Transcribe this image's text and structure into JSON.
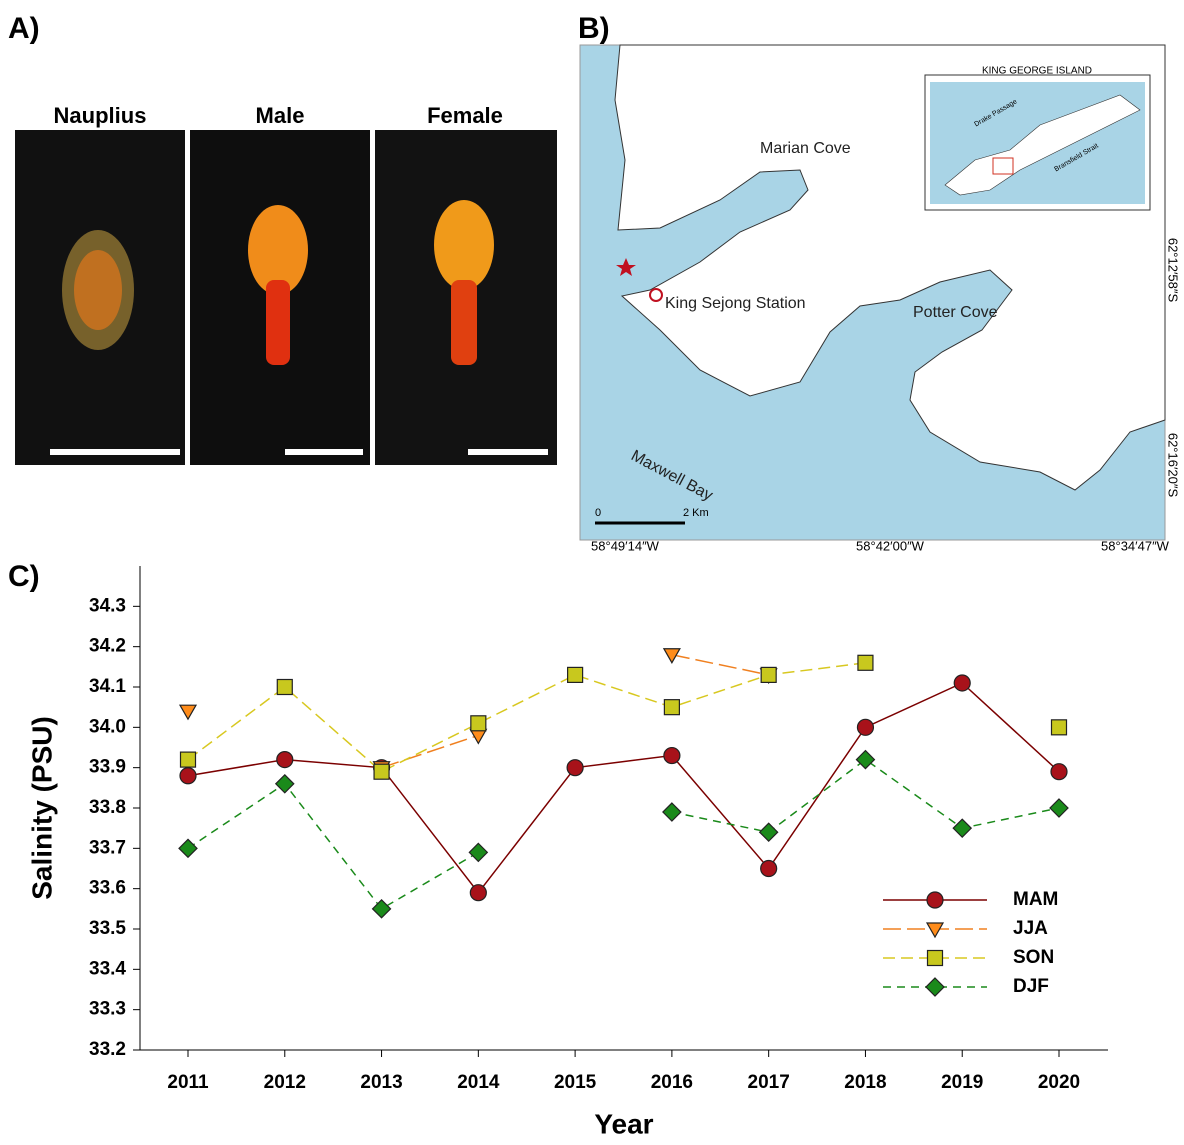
{
  "panel_a": {
    "label": "A)",
    "images": [
      "Nauplius",
      "Male",
      "Female"
    ]
  },
  "panel_b": {
    "label": "B)",
    "places": [
      "Marian Cove",
      "King Sejong Station",
      "Potter Cove",
      "Maxwell Bay"
    ],
    "inset_title": "KING GEORGE ISLAND",
    "inset_places": [
      "Drake Passage",
      "Bransfield Strait"
    ],
    "scale": [
      "0",
      "2 Km"
    ],
    "longitudes": [
      "58°49′14″W",
      "58°42′00″W",
      "58°34′47″W"
    ],
    "latitudes": [
      "62°12′58″S",
      "62°16′20″S"
    ]
  },
  "chart_data": {
    "type": "line",
    "panel_label": "C)",
    "x_label": "Year",
    "y_label": "Salinity (PSU)",
    "categories": [
      "2011",
      "2012",
      "2013",
      "2014",
      "2015",
      "2016",
      "2017",
      "2018",
      "2019",
      "2020"
    ],
    "series": [
      {
        "name": "MAM",
        "color": "#7b0000",
        "marker": "circle",
        "fill": "#a8121a",
        "dash": "none",
        "values": [
          33.88,
          33.92,
          33.9,
          33.59,
          33.9,
          33.93,
          33.65,
          34.0,
          34.11,
          33.89
        ]
      },
      {
        "name": "JJA",
        "color": "#f08020",
        "marker": "triangle-down",
        "fill": "#ff8c1a",
        "dash": "18 6",
        "values": [
          34.04,
          null,
          33.9,
          33.98,
          null,
          34.18,
          34.13,
          null,
          null,
          null
        ]
      },
      {
        "name": "SON",
        "color": "#d8c820",
        "marker": "square",
        "fill": "#c8c81e",
        "dash": "12 6",
        "values": [
          33.92,
          34.1,
          33.89,
          34.01,
          34.13,
          34.05,
          34.13,
          34.16,
          null,
          34.0
        ]
      },
      {
        "name": "DJF",
        "color": "#1a8a1a",
        "marker": "diamond",
        "fill": "#1a8a1a",
        "dash": "8 6",
        "values": [
          33.7,
          33.86,
          33.55,
          33.69,
          null,
          33.79,
          33.74,
          33.92,
          33.75,
          33.8
        ]
      }
    ],
    "ylim": [
      33.2,
      34.4
    ],
    "yticks": [
      33.2,
      33.3,
      33.4,
      33.5,
      33.6,
      33.7,
      33.8,
      33.9,
      {
        "value": 34,
        "label": "34.0"
      },
      34.1,
      34.2,
      34.3
    ],
    "legend": "lower-right"
  }
}
